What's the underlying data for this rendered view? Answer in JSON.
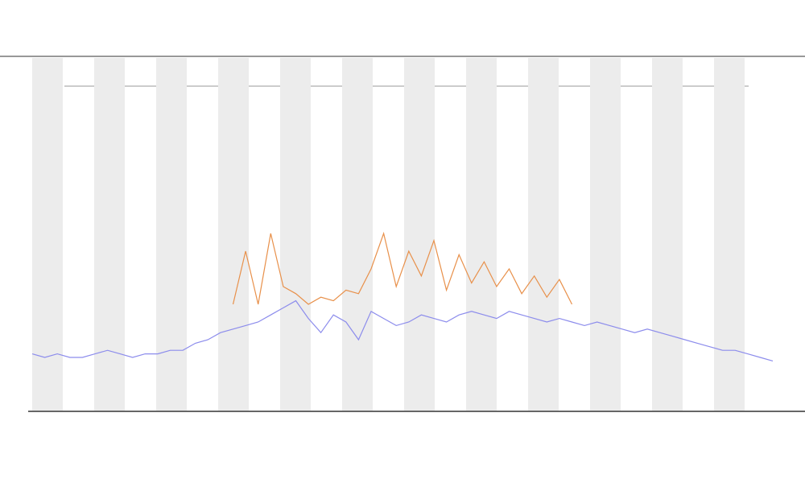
{
  "chart_data": {
    "type": "line",
    "ylim": [
      0,
      100
    ],
    "series": [
      {
        "color": "#8c8cec",
        "values": [
          16,
          15,
          16,
          15,
          15,
          16,
          17,
          16,
          15,
          16,
          16,
          17,
          17,
          19,
          20,
          22,
          23,
          24,
          25,
          27,
          29,
          31,
          26,
          22,
          27,
          25,
          20,
          28,
          26,
          24,
          25,
          27,
          26,
          25,
          27,
          28,
          27,
          26,
          28,
          27,
          26,
          25,
          26,
          25,
          24,
          25,
          24,
          23,
          22,
          23,
          22,
          21,
          20,
          19,
          18,
          17,
          17,
          16,
          15,
          14
        ]
      },
      {
        "color": "#e8904a",
        "values": [
          null,
          null,
          null,
          null,
          null,
          null,
          null,
          null,
          null,
          null,
          null,
          null,
          null,
          null,
          null,
          null,
          30,
          45,
          30,
          50,
          35,
          33,
          30,
          32,
          31,
          34,
          33,
          40,
          50,
          35,
          45,
          38,
          48,
          34,
          44,
          36,
          42,
          35,
          40,
          33,
          38,
          32,
          37,
          30,
          null,
          null,
          null,
          null,
          null,
          null,
          null,
          null,
          null,
          null,
          null,
          null,
          null,
          null,
          null,
          null
        ]
      }
    ]
  }
}
